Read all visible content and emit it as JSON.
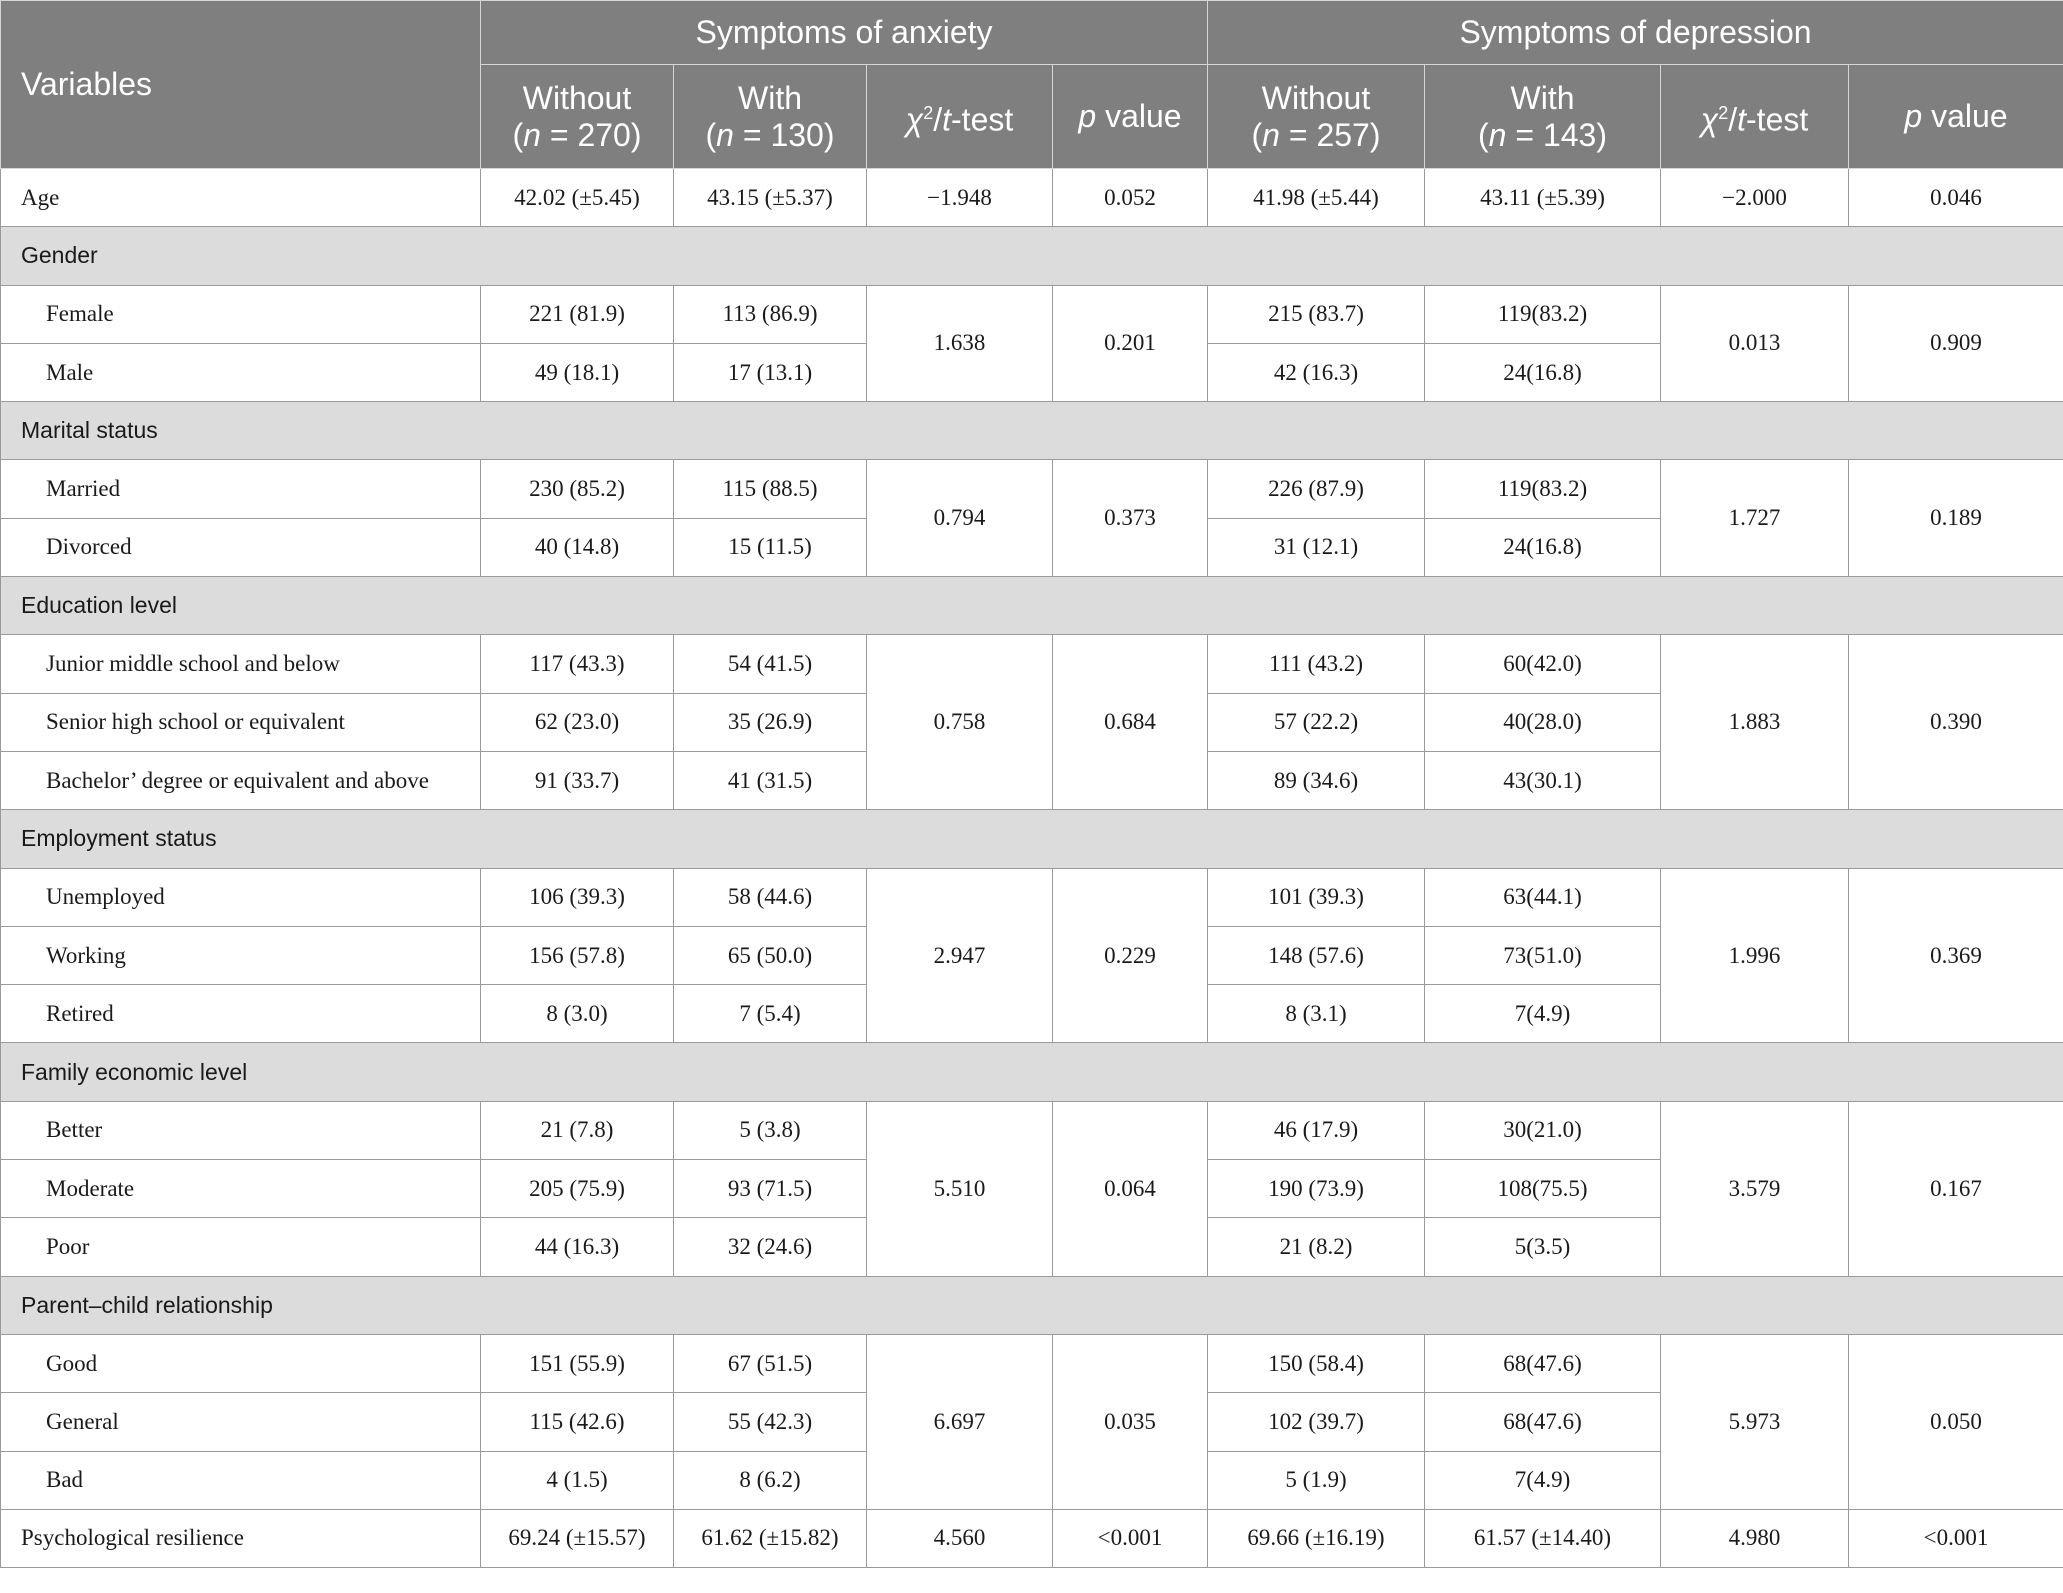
{
  "header": {
    "variables": "Variables",
    "anxiety": "Symptoms of anxiety",
    "depression": "Symptoms of depression",
    "without": "Without",
    "with": "With",
    "n_anx_without": "270",
    "n_anx_with": "130",
    "n_dep_without": "257",
    "n_dep_with": "143",
    "chi": "χ",
    "sq": "2",
    "t": "t",
    "test": "-test",
    "p": "p",
    "value": " value",
    "n": "n",
    "eq_open": "(",
    "eq": " = ",
    "close": ")"
  },
  "rows": {
    "age": {
      "label": "Age",
      "v": [
        "42.02 (±5.45)",
        "43.15 (±5.37)",
        "−1.948",
        "0.052",
        "41.98 (±5.44)",
        "43.11 (±5.39)",
        "−2.000",
        "0.046"
      ]
    },
    "gender": {
      "label": "Gender",
      "stats": [
        "1.638",
        "0.201",
        "0.013",
        "0.909"
      ],
      "items": [
        {
          "label": "Female",
          "v": [
            "221 (81.9)",
            "113 (86.9)",
            "215 (83.7)",
            "119(83.2)"
          ]
        },
        {
          "label": "Male",
          "v": [
            "49 (18.1)",
            "17 (13.1)",
            "42 (16.3)",
            "24(16.8)"
          ]
        }
      ]
    },
    "marital": {
      "label": "Marital status",
      "stats": [
        "0.794",
        "0.373",
        "1.727",
        "0.189"
      ],
      "items": [
        {
          "label": "Married",
          "v": [
            "230 (85.2)",
            "115 (88.5)",
            "226 (87.9)",
            "119(83.2)"
          ]
        },
        {
          "label": "Divorced",
          "v": [
            "40 (14.8)",
            "15 (11.5)",
            "31 (12.1)",
            "24(16.8)"
          ]
        }
      ]
    },
    "education": {
      "label": "Education level",
      "stats": [
        "0.758",
        "0.684",
        "1.883",
        "0.390"
      ],
      "items": [
        {
          "label": "Junior middle school and below",
          "v": [
            "117 (43.3)",
            "54 (41.5)",
            "111 (43.2)",
            "60(42.0)"
          ]
        },
        {
          "label": "Senior high school or equivalent",
          "v": [
            "62 (23.0)",
            "35 (26.9)",
            "57 (22.2)",
            "40(28.0)"
          ]
        },
        {
          "label": "Bachelor’ degree or equivalent and above",
          "v": [
            "91 (33.7)",
            "41 (31.5)",
            "89 (34.6)",
            "43(30.1)"
          ]
        }
      ]
    },
    "employment": {
      "label": "Employment status",
      "stats": [
        "2.947",
        "0.229",
        "1.996",
        "0.369"
      ],
      "items": [
        {
          "label": "Unemployed",
          "v": [
            "106 (39.3)",
            "58 (44.6)",
            "101 (39.3)",
            "63(44.1)"
          ]
        },
        {
          "label": "Working",
          "v": [
            "156 (57.8)",
            "65 (50.0)",
            "148 (57.6)",
            "73(51.0)"
          ]
        },
        {
          "label": "Retired",
          "v": [
            "8 (3.0)",
            "7 (5.4)",
            "8 (3.1)",
            "7(4.9)"
          ]
        }
      ]
    },
    "economic": {
      "label": "Family economic level",
      "stats": [
        "5.510",
        "0.064",
        "3.579",
        "0.167"
      ],
      "items": [
        {
          "label": "Better",
          "v": [
            "21 (7.8)",
            "5 (3.8)",
            "46 (17.9)",
            "30(21.0)"
          ]
        },
        {
          "label": "Moderate",
          "v": [
            "205 (75.9)",
            "93 (71.5)",
            "190 (73.9)",
            "108(75.5)"
          ]
        },
        {
          "label": "Poor",
          "v": [
            "44 (16.3)",
            "32 (24.6)",
            "21 (8.2)",
            "5(3.5)"
          ]
        }
      ]
    },
    "relationship": {
      "label": "Parent–child relationship",
      "stats": [
        "6.697",
        "0.035",
        "5.973",
        "0.050"
      ],
      "items": [
        {
          "label": "Good",
          "v": [
            "151 (55.9)",
            "67 (51.5)",
            "150 (58.4)",
            "68(47.6)"
          ]
        },
        {
          "label": "General",
          "v": [
            "115 (42.6)",
            "55 (42.3)",
            "102 (39.7)",
            "68(47.6)"
          ]
        },
        {
          "label": "Bad",
          "v": [
            "4 (1.5)",
            "8 (6.2)",
            "5 (1.9)",
            "7(4.9)"
          ]
        }
      ]
    },
    "resilience": {
      "label": "Psychological resilience",
      "v": [
        "69.24 (±15.57)",
        "61.62 (±15.82)",
        "4.560",
        "<0.001",
        "69.66 (±16.19)",
        "61.57 (±14.40)",
        "4.980",
        "<0.001"
      ]
    }
  }
}
